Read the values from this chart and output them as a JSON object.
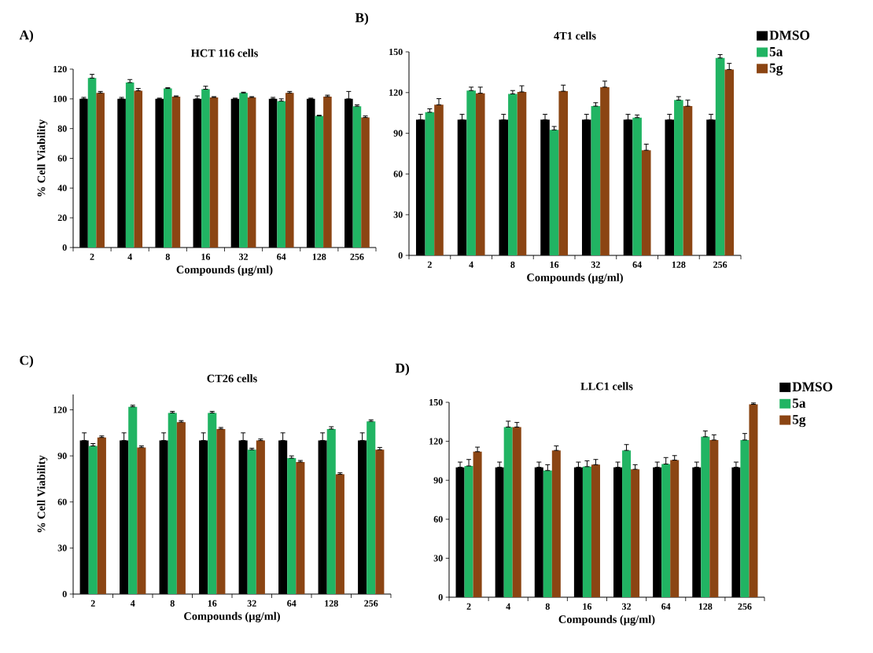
{
  "chart_data": [
    {
      "type": "bar",
      "title": "HCT 116 cells",
      "xlabel": "Compounds (µg/ml)",
      "ylabel": "% Cell Viability",
      "annotations": [
        "A)"
      ],
      "categories": [
        "2",
        "4",
        "8",
        "16",
        "32",
        "64",
        "128",
        "256"
      ],
      "ylim": [
        0,
        120
      ],
      "yticks": [
        0,
        20,
        40,
        60,
        80,
        100,
        120
      ],
      "legend": false,
      "series": [
        {
          "color": "#000000",
          "values": [
            100,
            100,
            100,
            100,
            100,
            100,
            100,
            100
          ],
          "errors": [
            [
              100,
              101
            ],
            [
              100,
              101
            ],
            [
              100,
              100.5
            ],
            [
              100,
              102
            ],
            [
              100,
              100.5
            ],
            [
              100,
              101
            ],
            [
              100,
              100.5
            ],
            [
              100,
              105
            ]
          ]
        },
        {
          "color": "#21b463",
          "values": [
            114,
            111,
            107,
            106.5,
            104,
            98.5,
            88.5,
            95
          ],
          "errors": [
            [
              114,
              116.5
            ],
            [
              111,
              113
            ],
            [
              107,
              107.5
            ],
            [
              106.5,
              108.5
            ],
            [
              104,
              104.5
            ],
            [
              98.5,
              100
            ],
            [
              88.5,
              89
            ],
            [
              95,
              96
            ]
          ]
        },
        {
          "color": "#8b4513",
          "values": [
            104,
            105.5,
            101.5,
            101,
            101,
            104,
            101.5,
            87.5
          ],
          "errors": [
            [
              104,
              105
            ],
            [
              105.5,
              107
            ],
            [
              101.5,
              102
            ],
            [
              101,
              101.5
            ],
            [
              101,
              101.5
            ],
            [
              104,
              105
            ],
            [
              101.5,
              102.5
            ],
            [
              87.5,
              88.5
            ]
          ]
        }
      ]
    },
    {
      "type": "bar",
      "title": "4T1 cells",
      "xlabel": "Compounds (µg/ml)",
      "annotations": [
        "B)"
      ],
      "categories": [
        "2",
        "4",
        "8",
        "16",
        "32",
        "64",
        "128",
        "256"
      ],
      "ylim": [
        0,
        150
      ],
      "yticks": [
        0,
        30,
        60,
        90,
        120,
        150
      ],
      "legend": "right",
      "series": [
        {
          "name": "DMSO",
          "color": "#000000",
          "values": [
            100,
            100,
            100,
            100,
            100,
            100,
            100,
            100
          ],
          "errors": [
            [
              100,
              104
            ],
            [
              100,
              104
            ],
            [
              100,
              104
            ],
            [
              100,
              104
            ],
            [
              100,
              104
            ],
            [
              100,
              104
            ],
            [
              100,
              104
            ],
            [
              100,
              104
            ]
          ]
        },
        {
          "name": "5a",
          "color": "#21b463",
          "values": [
            105.5,
            121.5,
            119,
            92.5,
            110,
            101.5,
            114.5,
            145.5
          ],
          "errors": [
            [
              105.5,
              108
            ],
            [
              121.5,
              124
            ],
            [
              119,
              121.5
            ],
            [
              92.5,
              95
            ],
            [
              110,
              112.5
            ],
            [
              101.5,
              103.5
            ],
            [
              114.5,
              117
            ],
            [
              145.5,
              148
            ]
          ]
        },
        {
          "name": "5g",
          "color": "#8b4513",
          "values": [
            111,
            119.5,
            120.5,
            121,
            124,
            77.5,
            110,
            137
          ],
          "errors": [
            [
              111,
              115.5
            ],
            [
              119.5,
              124
            ],
            [
              120.5,
              125
            ],
            [
              121,
              125.5
            ],
            [
              124,
              128.5
            ],
            [
              77.5,
              82
            ],
            [
              110,
              114.5
            ],
            [
              137,
              141.5
            ]
          ]
        }
      ]
    },
    {
      "type": "bar",
      "title": "CT26 cells",
      "xlabel": "Compounds (µg/ml)",
      "ylabel": "% Cell Viability",
      "annotations": [
        "C)"
      ],
      "categories": [
        "2",
        "4",
        "8",
        "16",
        "32",
        "64",
        "128",
        "256"
      ],
      "ylim": [
        0,
        130
      ],
      "yticks": [
        0,
        30,
        60,
        90,
        120
      ],
      "legend": false,
      "series": [
        {
          "color": "#000000",
          "values": [
            100,
            100,
            100,
            100,
            100,
            100,
            100,
            100
          ],
          "errors": [
            [
              100,
              105
            ],
            [
              100,
              105
            ],
            [
              100,
              105
            ],
            [
              100,
              105
            ],
            [
              100,
              105
            ],
            [
              100,
              105
            ],
            [
              100,
              105
            ],
            [
              100,
              105
            ]
          ]
        },
        {
          "color": "#21b463",
          "values": [
            96.5,
            122,
            118,
            118,
            94,
            88.5,
            107.5,
            112.5
          ],
          "errors": [
            [
              96.5,
              98
            ],
            [
              122,
              123
            ],
            [
              118,
              119
            ],
            [
              118,
              119
            ],
            [
              94,
              95
            ],
            [
              88.5,
              90
            ],
            [
              107.5,
              109
            ],
            [
              112.5,
              113.5
            ]
          ]
        },
        {
          "color": "#8b4513",
          "values": [
            102,
            95.5,
            112,
            107.5,
            100,
            86,
            78,
            94
          ],
          "errors": [
            [
              102,
              103
            ],
            [
              95.5,
              96.5
            ],
            [
              112,
              113
            ],
            [
              107.5,
              108.5
            ],
            [
              100,
              101
            ],
            [
              86,
              87
            ],
            [
              78,
              79
            ],
            [
              94,
              95.5
            ]
          ]
        }
      ]
    },
    {
      "type": "bar",
      "title": "LLC1 cells",
      "xlabel": "Compounds (µg/ml)",
      "annotations": [
        "D)"
      ],
      "categories": [
        "2",
        "4",
        "8",
        "16",
        "32",
        "64",
        "128",
        "256"
      ],
      "ylim": [
        0,
        150
      ],
      "yticks": [
        0,
        30,
        60,
        90,
        120,
        150
      ],
      "legend": "right",
      "series": [
        {
          "name": "DMSO",
          "color": "#000000",
          "values": [
            100,
            100,
            100,
            100,
            100,
            100,
            100,
            100
          ],
          "errors": [
            [
              100,
              104
            ],
            [
              100,
              104
            ],
            [
              100,
              104
            ],
            [
              100,
              104
            ],
            [
              100,
              104
            ],
            [
              100,
              104
            ],
            [
              100,
              104
            ],
            [
              100,
              104
            ]
          ]
        },
        {
          "name": "5a",
          "color": "#21b463",
          "values": [
            101,
            131,
            97.5,
            100.5,
            113,
            102.5,
            123.5,
            121
          ],
          "errors": [
            [
              101,
              106
            ],
            [
              131,
              135.5
            ],
            [
              97.5,
              102
            ],
            [
              100.5,
              105
            ],
            [
              113,
              117.5
            ],
            [
              102.5,
              107.5
            ],
            [
              123.5,
              128
            ],
            [
              121,
              126
            ]
          ]
        },
        {
          "name": "5g",
          "color": "#8b4513",
          "values": [
            112,
            131,
            113,
            102,
            98.5,
            105.5,
            121,
            148.5
          ],
          "errors": [
            [
              112,
              115.5
            ],
            [
              131,
              134.5
            ],
            [
              113,
              116.5
            ],
            [
              102,
              106
            ],
            [
              98.5,
              102
            ],
            [
              105.5,
              109
            ],
            [
              121,
              125
            ],
            [
              148.5,
              149.5
            ]
          ]
        }
      ]
    }
  ]
}
